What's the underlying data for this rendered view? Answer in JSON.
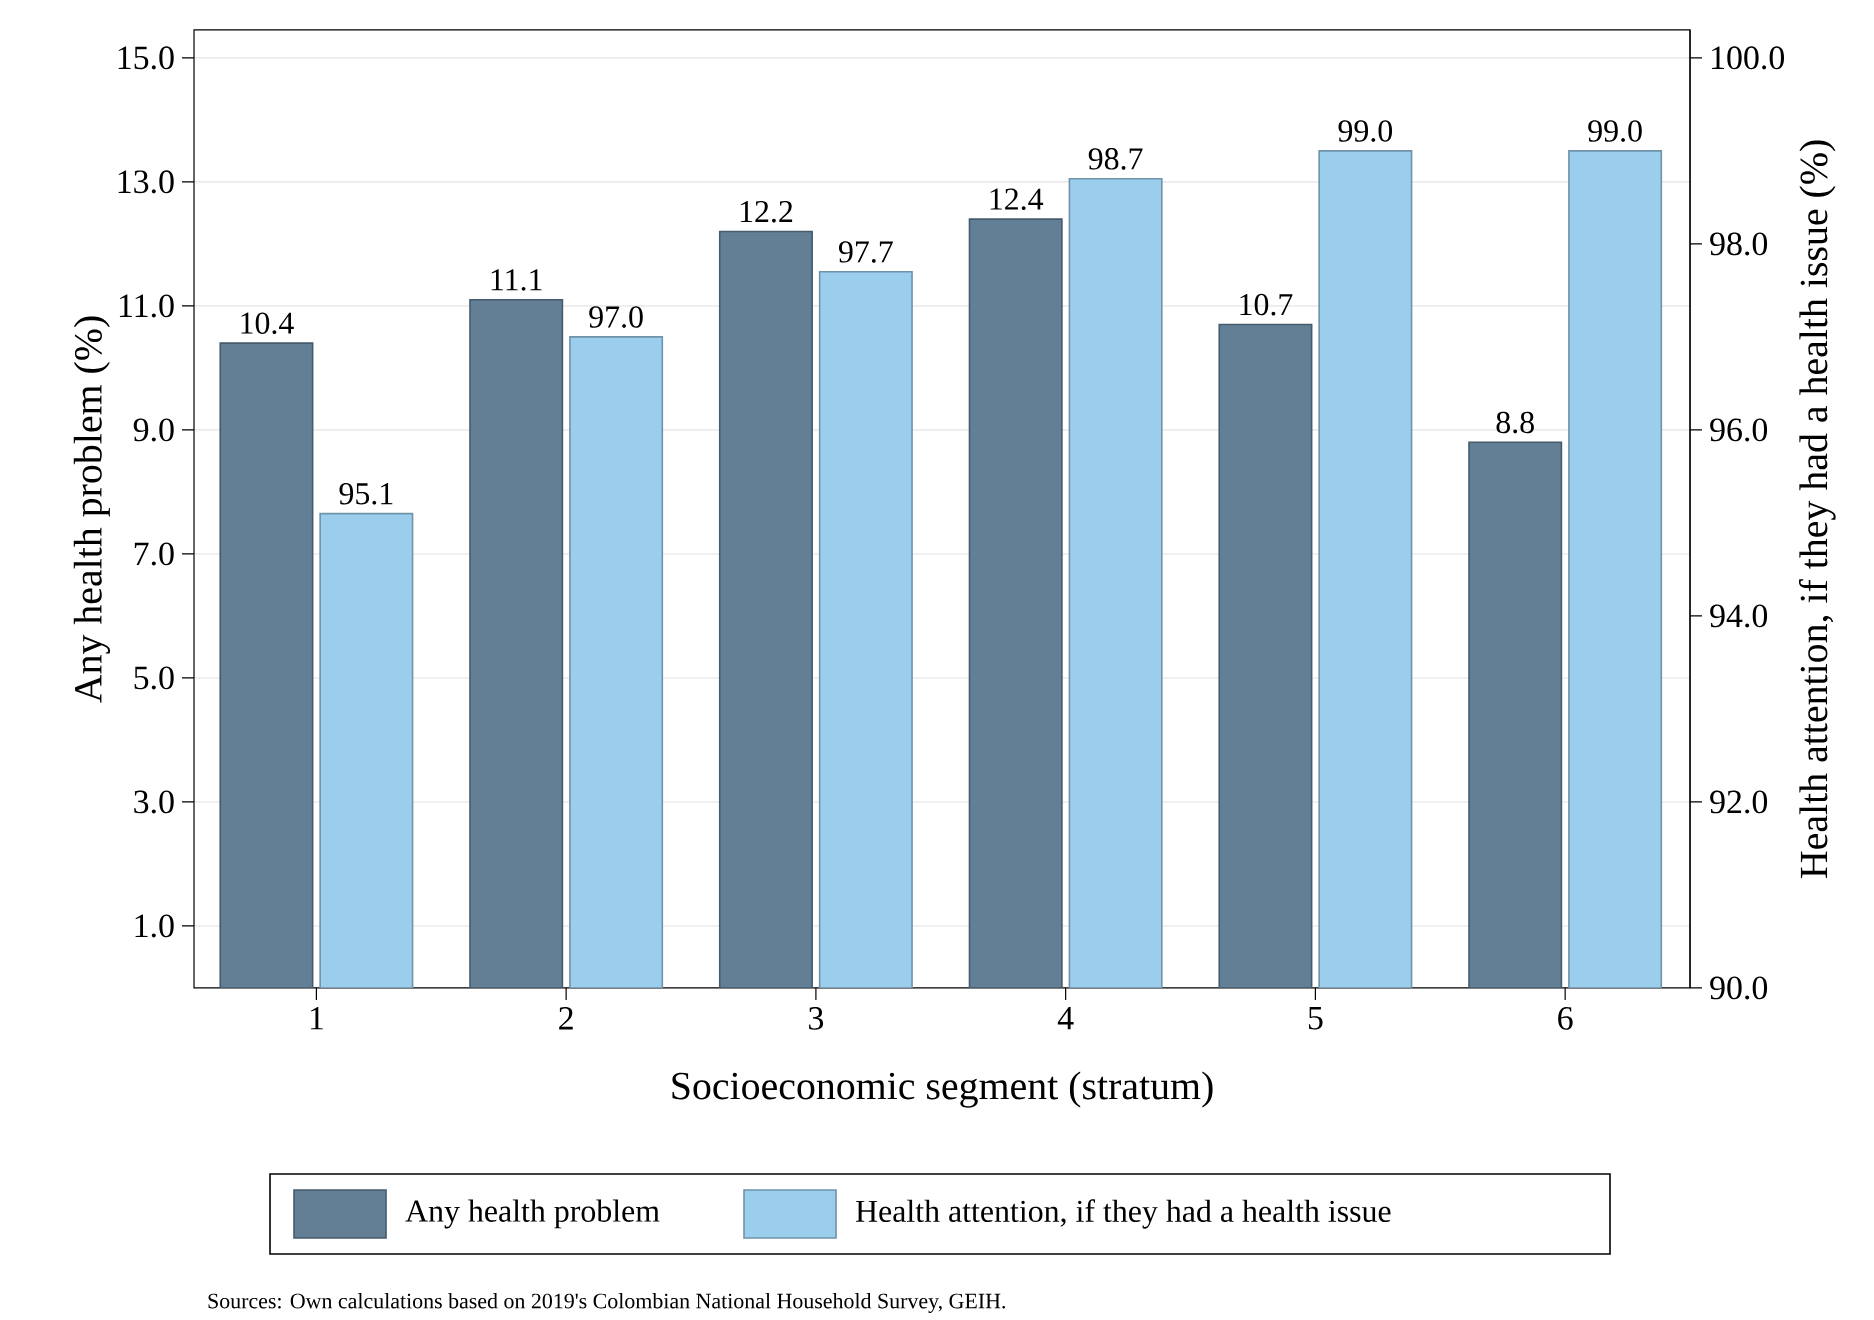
{
  "chart_data": {
    "type": "bar",
    "categories": [
      "1",
      "2",
      "3",
      "4",
      "5",
      "6"
    ],
    "xlabel": "Socioeconomic segment (stratum)",
    "ylabel": "Any health problem (%)",
    "y2label": "Health attention, if they had a health issue (%)",
    "series": [
      {
        "name": "Any health problem",
        "color": "#627f96",
        "values": [
          10.4,
          11.1,
          12.2,
          12.4,
          10.7,
          8.8
        ],
        "value_labels": [
          "10.4",
          "11.1",
          "12.2",
          "12.4",
          "10.7",
          "8.8"
        ]
      },
      {
        "name": "Health attention, if they had a health issue",
        "color": "#9bcdec",
        "axis": "y2",
        "values": [
          95.1,
          97.0,
          97.7,
          98.7,
          99.0,
          99.0
        ],
        "value_labels": [
          "95.1",
          "97.0",
          "97.7",
          "98.7",
          "99.0",
          "99.0"
        ]
      }
    ],
    "ylim": [
      0,
      15.45
    ],
    "yticks": [
      {
        "value": 1,
        "label": "1.0"
      },
      {
        "value": 3,
        "label": "3.0"
      },
      {
        "value": 5,
        "label": "5.0"
      },
      {
        "value": 7,
        "label": "7.0"
      },
      {
        "value": 9,
        "label": "9.0"
      },
      {
        "value": 11,
        "label": "11.0"
      },
      {
        "value": 13,
        "label": "13.0"
      },
      {
        "value": 15,
        "label": "15.0"
      }
    ],
    "y2lim": [
      90,
      100.3
    ],
    "y2ticks": [
      {
        "value": 90,
        "label": "90.0"
      },
      {
        "value": 92,
        "label": "92.0"
      },
      {
        "value": 94,
        "label": "94.0"
      },
      {
        "value": 96,
        "label": "96.0"
      },
      {
        "value": 98,
        "label": "98.0"
      },
      {
        "value": 100,
        "label": "100.0"
      }
    ],
    "grid": "y",
    "legend": "bottom",
    "annotations": [
      "Sources: Own calculations based on 2019's Colombian National Household Survey, GEIH."
    ]
  }
}
